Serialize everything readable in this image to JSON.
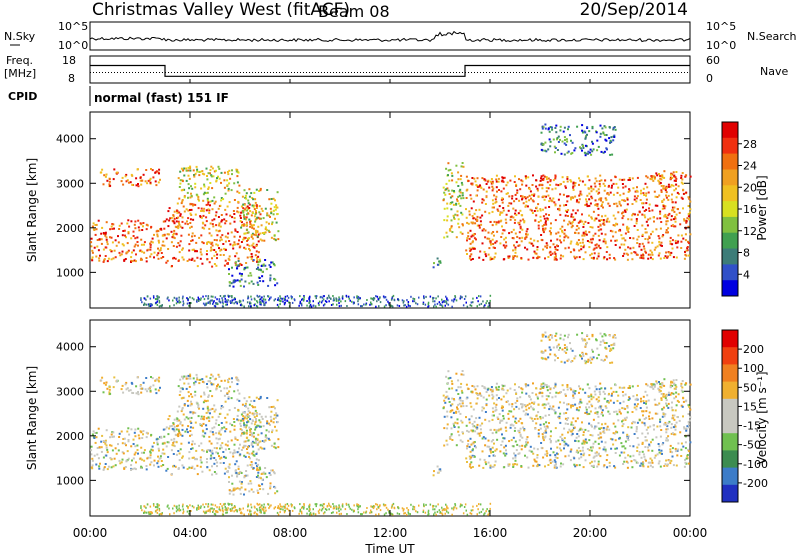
{
  "header": {
    "station": "Christmas Valley West (fitACF)",
    "beam": "Beam 08",
    "date": "20/Sep/2014"
  },
  "noise_panel": {
    "left_label": "N.Sky",
    "right_label": "N.Search",
    "left_ticks": [
      "10^5",
      "10^0"
    ],
    "right_ticks": [
      "10^5",
      "10^0"
    ]
  },
  "freq_panel": {
    "left_label_line1": "Freq.",
    "left_label_line2": "[MHz]",
    "right_label": "Nave",
    "left_ticks": [
      "18",
      "8"
    ],
    "right_ticks": [
      "60",
      "0"
    ],
    "freq_values_mhz": [
      {
        "t_hours": 0,
        "freq": 14.5
      },
      {
        "t_hours": 3,
        "freq": 14.5
      },
      {
        "t_hours": 3,
        "freq": 10.5
      },
      {
        "t_hours": 15,
        "freq": 10.5
      },
      {
        "t_hours": 15,
        "freq": 14.5
      },
      {
        "t_hours": 24,
        "freq": 14.5
      }
    ]
  },
  "cpid": {
    "label": "CPID",
    "mode": "normal (fast) 151 IF"
  },
  "power_colorbar": {
    "label": "Power [dB]",
    "ticks": [
      "28",
      "24",
      "20",
      "16",
      "12",
      "8",
      "4"
    ],
    "colors": [
      "#0000e0",
      "#3050c8",
      "#3c7c78",
      "#40a050",
      "#80c040",
      "#d8e020",
      "#f0c020",
      "#f0a020",
      "#f07010",
      "#f03010",
      "#e00000"
    ]
  },
  "velocity_colorbar": {
    "label": "Velocity [m s⁻¹]",
    "ticks": [
      "200",
      "100",
      "50",
      "15",
      "-15",
      "-50",
      "-100",
      "-200"
    ],
    "colors": [
      "#2030c0",
      "#3c7cc8",
      "#3c8c50",
      "#70c050",
      "#c8c8c0",
      "#c8c8c0",
      "#f0b030",
      "#f08020",
      "#f04010",
      "#e00000"
    ]
  },
  "chart_data": [
    {
      "type": "heatmap",
      "name": "power",
      "ylabel": "Slant Range [km]",
      "yticks": [
        1000,
        2000,
        3000,
        4000
      ],
      "ylim": [
        200,
        4600
      ],
      "xlim_hours": [
        0,
        24
      ],
      "regions": [
        {
          "t0": 0.0,
          "t1": 3.0,
          "r0": 1250,
          "r1": 2200,
          "level": "high"
        },
        {
          "t0": 0.3,
          "t1": 2.8,
          "r0": 2950,
          "r1": 3350,
          "level": "high"
        },
        {
          "t0": 3.0,
          "t1": 6.8,
          "r0": 1150,
          "r1": 2600,
          "level": "high"
        },
        {
          "t0": 3.5,
          "t1": 6.0,
          "r0": 2600,
          "r1": 3400,
          "level": "mid"
        },
        {
          "t0": 6.0,
          "t1": 7.5,
          "r0": 1700,
          "r1": 2900,
          "level": "mid"
        },
        {
          "t0": 5.5,
          "t1": 7.5,
          "r0": 700,
          "r1": 1300,
          "level": "low"
        },
        {
          "t0": 13.7,
          "t1": 14.0,
          "r0": 1050,
          "r1": 1450,
          "level": "low"
        },
        {
          "t0": 14.1,
          "t1": 14.9,
          "r0": 1800,
          "r1": 3500,
          "level": "mid"
        },
        {
          "t0": 15.0,
          "t1": 24.0,
          "r0": 1300,
          "r1": 3200,
          "level": "high"
        },
        {
          "t0": 18.0,
          "t1": 21.0,
          "r0": 3650,
          "r1": 4350,
          "level": "low"
        },
        {
          "t0": 22.5,
          "t1": 24.0,
          "r0": 2950,
          "r1": 3300,
          "level": "high"
        }
      ]
    },
    {
      "type": "heatmap",
      "name": "velocity",
      "ylabel": "Slant Range [km]",
      "yticks": [
        1000,
        2000,
        3000,
        4000
      ],
      "ylim": [
        200,
        4600
      ],
      "xlim_hours": [
        0,
        24
      ],
      "xlabel": "Time UT",
      "xticks": [
        "00:00",
        "04:00",
        "08:00",
        "12:00",
        "16:00",
        "20:00",
        "00:00"
      ]
    }
  ]
}
